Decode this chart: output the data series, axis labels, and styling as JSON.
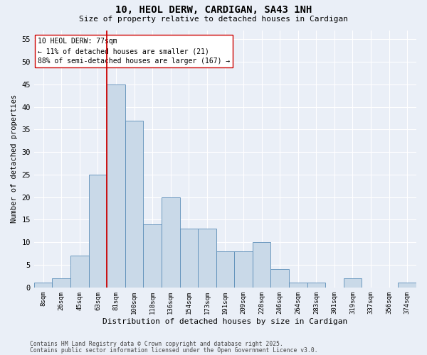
{
  "title1": "10, HEOL DERW, CARDIGAN, SA43 1NH",
  "title2": "Size of property relative to detached houses in Cardigan",
  "xlabel": "Distribution of detached houses by size in Cardigan",
  "ylabel": "Number of detached properties",
  "bin_labels": [
    "8sqm",
    "26sqm",
    "45sqm",
    "63sqm",
    "81sqm",
    "100sqm",
    "118sqm",
    "136sqm",
    "154sqm",
    "173sqm",
    "191sqm",
    "209sqm",
    "228sqm",
    "246sqm",
    "264sqm",
    "283sqm",
    "301sqm",
    "319sqm",
    "337sqm",
    "356sqm",
    "374sqm"
  ],
  "bar_heights": [
    1,
    2,
    7,
    25,
    45,
    37,
    14,
    20,
    13,
    13,
    8,
    8,
    10,
    4,
    1,
    1,
    0,
    2,
    0,
    0,
    1
  ],
  "bar_color": "#c9d9e8",
  "bar_edge_color": "#5b8db8",
  "vline_x": 3.5,
  "vline_color": "#cc0000",
  "annotation_text": "10 HEOL DERW: 77sqm\n← 11% of detached houses are smaller (21)\n88% of semi-detached houses are larger (167) →",
  "annotation_box_color": "#ffffff",
  "annotation_box_edge": "#cc0000",
  "yticks": [
    0,
    5,
    10,
    15,
    20,
    25,
    30,
    35,
    40,
    45,
    50,
    55
  ],
  "ylim": [
    0,
    57
  ],
  "footer1": "Contains HM Land Registry data © Crown copyright and database right 2025.",
  "footer2": "Contains public sector information licensed under the Open Government Licence v3.0.",
  "bg_color": "#eaeff7",
  "plot_bg_color": "#eaeff7",
  "grid_color": "#ffffff"
}
